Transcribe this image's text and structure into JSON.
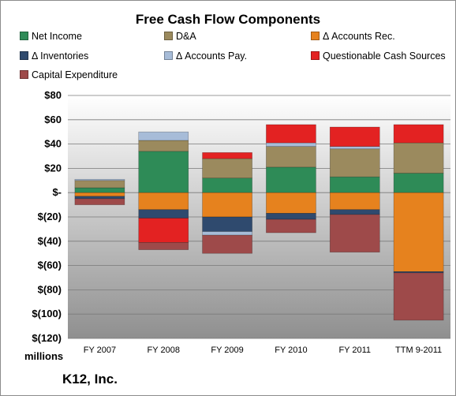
{
  "chart_data": {
    "type": "bar",
    "subtype": "stacked",
    "title": "Free Cash Flow Components",
    "ylim": [
      -120,
      80
    ],
    "yticks": [
      80,
      60,
      40,
      20,
      0,
      -20,
      -40,
      -60,
      -80,
      -100,
      -120
    ],
    "ytick_labels": [
      "$80",
      "$60",
      "$40",
      "$20",
      "$-",
      "$(20)",
      "$(40)",
      "$(60)",
      "$(80)",
      "$(100)",
      "$(120)"
    ],
    "y_units": "millions",
    "categories": [
      "FY 2007",
      "FY 2008",
      "FY 2009",
      "FY 2010",
      "FY 2011",
      "TTM 9-2011"
    ],
    "legend_position": "top",
    "grid": true,
    "series": [
      {
        "name": "Net Income",
        "color": "#2e8b57",
        "values": [
          4,
          34,
          12,
          21,
          13,
          16
        ]
      },
      {
        "name": "D&A",
        "color": "#9b8a5e",
        "values": [
          6,
          9,
          16,
          17,
          23,
          25
        ]
      },
      {
        "name": "Δ Accounts Rec.",
        "color": "#e6821e",
        "values": [
          -3,
          -14,
          -20,
          -17,
          -14,
          -65
        ]
      },
      {
        "name": "Δ Inventories",
        "color": "#2f4a6e",
        "values": [
          -2,
          -7,
          -12,
          -5,
          -4,
          -1
        ]
      },
      {
        "name": "Δ Accounts Pay.",
        "color": "#a7bcd8",
        "values": [
          1,
          7,
          -3,
          3,
          2,
          0
        ]
      },
      {
        "name": "Questionable Cash Sources",
        "color": "#e32222",
        "values": [
          0,
          -20,
          5,
          15,
          16,
          15
        ]
      },
      {
        "name": "Capital Expenditure",
        "color": "#9e4a4a",
        "values": [
          -5,
          -6,
          -15,
          -11,
          -31,
          -39
        ]
      }
    ]
  },
  "footer": "K12, Inc."
}
